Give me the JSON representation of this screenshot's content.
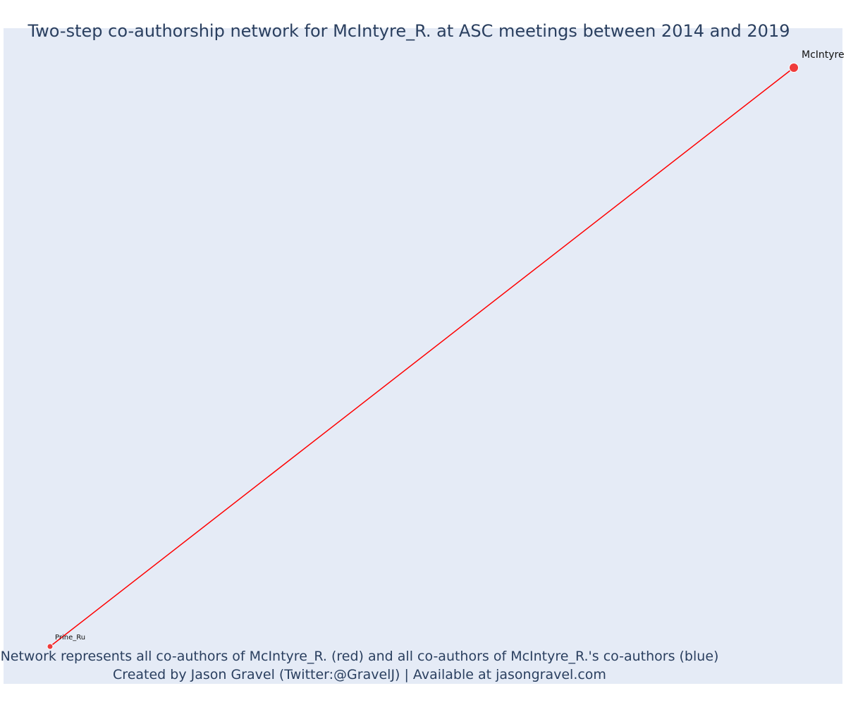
{
  "title": "Two-step co-authorship network for McIntyre_R. at ASC meetings between 2014 and 2019",
  "caption": {
    "line1": "Network represents all co-authors of McIntyre_R. (red) and all co-authors of McIntyre_R.'s co-authors (blue)",
    "line2": "Created by Jason Gravel (Twitter:@GravelJ) | Available at jasongravel.com"
  },
  "colors": {
    "background": "#e5ebf6",
    "edge": "#ff0000",
    "node": "#ef3b3b",
    "text": "#2a3f5f"
  },
  "chart_data": {
    "type": "network",
    "nodes": [
      {
        "id": "mcintyre",
        "label": "McIntyre",
        "role": "focal",
        "color": "#ef3b3b"
      },
      {
        "id": "prine",
        "label": "Prine_Ru",
        "role": "co-author",
        "color": "#ef3b3b"
      }
    ],
    "edges": [
      {
        "source": "prine",
        "target": "mcintyre",
        "color": "#ff0000"
      }
    ]
  }
}
